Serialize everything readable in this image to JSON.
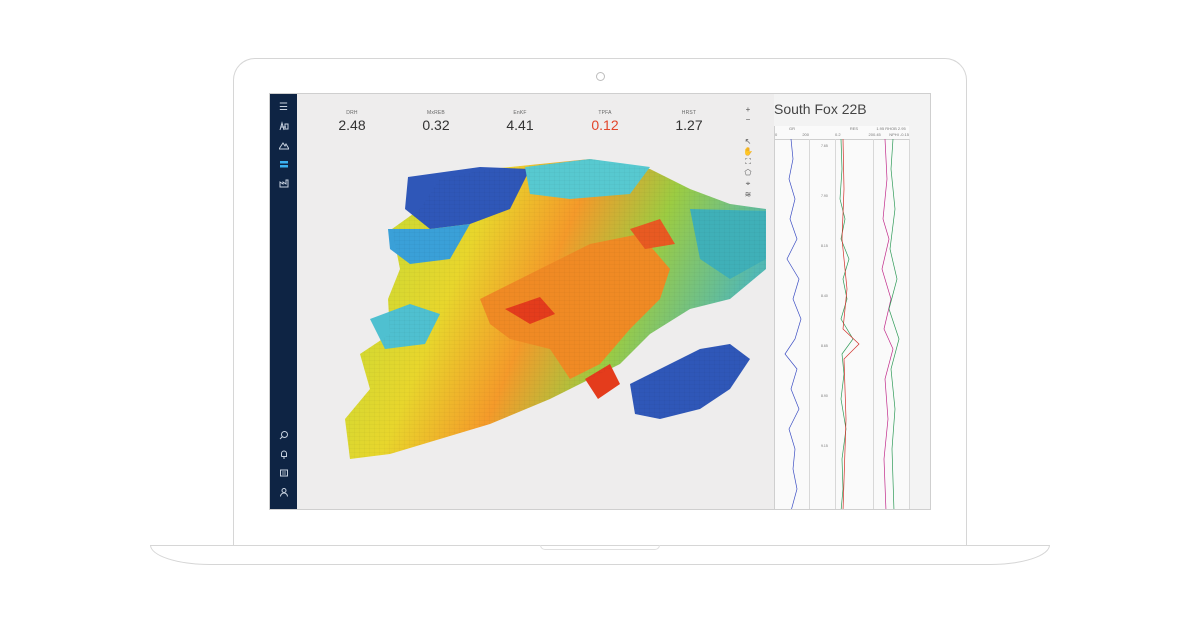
{
  "metrics": [
    {
      "label": "DRH",
      "value": "2.48",
      "status": "normal"
    },
    {
      "label": "MxREB",
      "value": "0.32",
      "status": "normal"
    },
    {
      "label": "EnKF",
      "value": "4.41",
      "status": "normal"
    },
    {
      "label": "TPFA",
      "value": "0.12",
      "status": "alert"
    },
    {
      "label": "HRST",
      "value": "1.27",
      "status": "normal"
    }
  ],
  "well": {
    "name": "South Fox 22B",
    "tracks": [
      {
        "header": "GR",
        "scale_min": "0",
        "scale_max": "200"
      },
      {
        "header": "",
        "scale_min": "",
        "scale_max": ""
      },
      {
        "header": "RES",
        "scale_min": "0.2",
        "scale_max": "20"
      },
      {
        "header": "1.95 RHOB 2.95",
        "scale_min": "0.45",
        "scale_max": "NPHI -0.15"
      }
    ],
    "depths": [
      "7.65",
      "7.90",
      "8.15",
      "8.40",
      "8.65",
      "8.90",
      "9.15"
    ]
  },
  "colors": {
    "sidebar_bg": "#0e2444",
    "accent": "#3ab0f0",
    "alert": "#e2452a",
    "gr_curve": "#3d4fc4",
    "res_curve": "#2e9a57",
    "rhob_curve": "#c12a8a"
  },
  "sidebar_icons": [
    "menu-icon",
    "rig-icon",
    "terrain-icon",
    "layers-icon",
    "factory-icon",
    "search-icon",
    "bell-icon",
    "chat-icon",
    "user-icon"
  ],
  "toolbar_icons": [
    "zoom-in-icon",
    "zoom-out-icon",
    "pointer-icon",
    "hand-icon",
    "fit-icon",
    "polygon-icon",
    "pin-icon",
    "layers-icon"
  ]
}
